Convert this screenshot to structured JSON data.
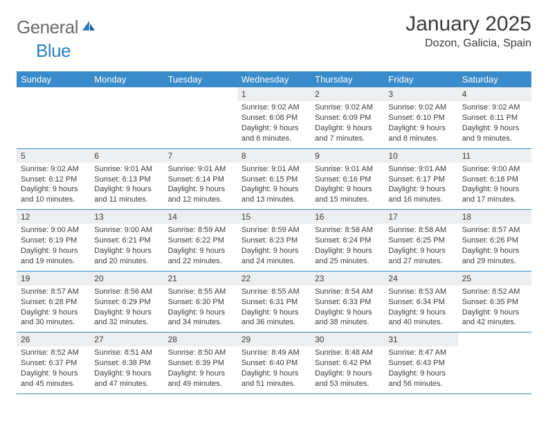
{
  "logo": {
    "text_general": "General",
    "text_blue": "Blue"
  },
  "title": "January 2025",
  "location": "Dozon, Galicia, Spain",
  "colors": {
    "header_bg": "#3a8bc9",
    "daynum_bg": "#eceef0",
    "text": "#3a3a3a",
    "logo_gray": "#6b6b6b",
    "logo_blue": "#2b7fc3",
    "border": "#3a8bc9"
  },
  "weekdays": [
    "Sunday",
    "Monday",
    "Tuesday",
    "Wednesday",
    "Thursday",
    "Friday",
    "Saturday"
  ],
  "weeks": [
    [
      {
        "n": "",
        "sr": "",
        "ss": "",
        "dl": ""
      },
      {
        "n": "",
        "sr": "",
        "ss": "",
        "dl": ""
      },
      {
        "n": "",
        "sr": "",
        "ss": "",
        "dl": ""
      },
      {
        "n": "1",
        "sr": "Sunrise: 9:02 AM",
        "ss": "Sunset: 6:08 PM",
        "dl": "Daylight: 9 hours and 6 minutes."
      },
      {
        "n": "2",
        "sr": "Sunrise: 9:02 AM",
        "ss": "Sunset: 6:09 PM",
        "dl": "Daylight: 9 hours and 7 minutes."
      },
      {
        "n": "3",
        "sr": "Sunrise: 9:02 AM",
        "ss": "Sunset: 6:10 PM",
        "dl": "Daylight: 9 hours and 8 minutes."
      },
      {
        "n": "4",
        "sr": "Sunrise: 9:02 AM",
        "ss": "Sunset: 6:11 PM",
        "dl": "Daylight: 9 hours and 9 minutes."
      }
    ],
    [
      {
        "n": "5",
        "sr": "Sunrise: 9:02 AM",
        "ss": "Sunset: 6:12 PM",
        "dl": "Daylight: 9 hours and 10 minutes."
      },
      {
        "n": "6",
        "sr": "Sunrise: 9:01 AM",
        "ss": "Sunset: 6:13 PM",
        "dl": "Daylight: 9 hours and 11 minutes."
      },
      {
        "n": "7",
        "sr": "Sunrise: 9:01 AM",
        "ss": "Sunset: 6:14 PM",
        "dl": "Daylight: 9 hours and 12 minutes."
      },
      {
        "n": "8",
        "sr": "Sunrise: 9:01 AM",
        "ss": "Sunset: 6:15 PM",
        "dl": "Daylight: 9 hours and 13 minutes."
      },
      {
        "n": "9",
        "sr": "Sunrise: 9:01 AM",
        "ss": "Sunset: 6:16 PM",
        "dl": "Daylight: 9 hours and 15 minutes."
      },
      {
        "n": "10",
        "sr": "Sunrise: 9:01 AM",
        "ss": "Sunset: 6:17 PM",
        "dl": "Daylight: 9 hours and 16 minutes."
      },
      {
        "n": "11",
        "sr": "Sunrise: 9:00 AM",
        "ss": "Sunset: 6:18 PM",
        "dl": "Daylight: 9 hours and 17 minutes."
      }
    ],
    [
      {
        "n": "12",
        "sr": "Sunrise: 9:00 AM",
        "ss": "Sunset: 6:19 PM",
        "dl": "Daylight: 9 hours and 19 minutes."
      },
      {
        "n": "13",
        "sr": "Sunrise: 9:00 AM",
        "ss": "Sunset: 6:21 PM",
        "dl": "Daylight: 9 hours and 20 minutes."
      },
      {
        "n": "14",
        "sr": "Sunrise: 8:59 AM",
        "ss": "Sunset: 6:22 PM",
        "dl": "Daylight: 9 hours and 22 minutes."
      },
      {
        "n": "15",
        "sr": "Sunrise: 8:59 AM",
        "ss": "Sunset: 6:23 PM",
        "dl": "Daylight: 9 hours and 24 minutes."
      },
      {
        "n": "16",
        "sr": "Sunrise: 8:58 AM",
        "ss": "Sunset: 6:24 PM",
        "dl": "Daylight: 9 hours and 25 minutes."
      },
      {
        "n": "17",
        "sr": "Sunrise: 8:58 AM",
        "ss": "Sunset: 6:25 PM",
        "dl": "Daylight: 9 hours and 27 minutes."
      },
      {
        "n": "18",
        "sr": "Sunrise: 8:57 AM",
        "ss": "Sunset: 6:26 PM",
        "dl": "Daylight: 9 hours and 29 minutes."
      }
    ],
    [
      {
        "n": "19",
        "sr": "Sunrise: 8:57 AM",
        "ss": "Sunset: 6:28 PM",
        "dl": "Daylight: 9 hours and 30 minutes."
      },
      {
        "n": "20",
        "sr": "Sunrise: 8:56 AM",
        "ss": "Sunset: 6:29 PM",
        "dl": "Daylight: 9 hours and 32 minutes."
      },
      {
        "n": "21",
        "sr": "Sunrise: 8:55 AM",
        "ss": "Sunset: 6:30 PM",
        "dl": "Daylight: 9 hours and 34 minutes."
      },
      {
        "n": "22",
        "sr": "Sunrise: 8:55 AM",
        "ss": "Sunset: 6:31 PM",
        "dl": "Daylight: 9 hours and 36 minutes."
      },
      {
        "n": "23",
        "sr": "Sunrise: 8:54 AM",
        "ss": "Sunset: 6:33 PM",
        "dl": "Daylight: 9 hours and 38 minutes."
      },
      {
        "n": "24",
        "sr": "Sunrise: 8:53 AM",
        "ss": "Sunset: 6:34 PM",
        "dl": "Daylight: 9 hours and 40 minutes."
      },
      {
        "n": "25",
        "sr": "Sunrise: 8:52 AM",
        "ss": "Sunset: 6:35 PM",
        "dl": "Daylight: 9 hours and 42 minutes."
      }
    ],
    [
      {
        "n": "26",
        "sr": "Sunrise: 8:52 AM",
        "ss": "Sunset: 6:37 PM",
        "dl": "Daylight: 9 hours and 45 minutes."
      },
      {
        "n": "27",
        "sr": "Sunrise: 8:51 AM",
        "ss": "Sunset: 6:38 PM",
        "dl": "Daylight: 9 hours and 47 minutes."
      },
      {
        "n": "28",
        "sr": "Sunrise: 8:50 AM",
        "ss": "Sunset: 6:39 PM",
        "dl": "Daylight: 9 hours and 49 minutes."
      },
      {
        "n": "29",
        "sr": "Sunrise: 8:49 AM",
        "ss": "Sunset: 6:40 PM",
        "dl": "Daylight: 9 hours and 51 minutes."
      },
      {
        "n": "30",
        "sr": "Sunrise: 8:48 AM",
        "ss": "Sunset: 6:42 PM",
        "dl": "Daylight: 9 hours and 53 minutes."
      },
      {
        "n": "31",
        "sr": "Sunrise: 8:47 AM",
        "ss": "Sunset: 6:43 PM",
        "dl": "Daylight: 9 hours and 56 minutes."
      },
      {
        "n": "",
        "sr": "",
        "ss": "",
        "dl": ""
      }
    ]
  ]
}
